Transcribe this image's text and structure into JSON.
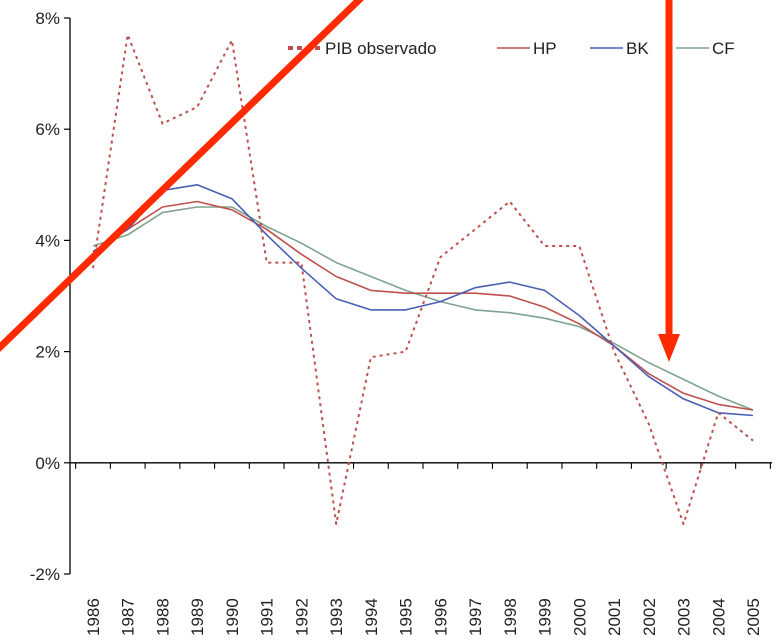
{
  "chart_data": {
    "type": "line",
    "categories": [
      "1986",
      "1987",
      "1988",
      "1989",
      "1990",
      "1991",
      "1992",
      "1993",
      "1994",
      "1995",
      "1996",
      "1997",
      "1998",
      "1999",
      "2000",
      "2001",
      "2002",
      "2003",
      "2004",
      "2005"
    ],
    "ylim": [
      -2,
      8
    ],
    "yticks": [
      -2,
      0,
      2,
      4,
      6,
      8
    ],
    "ytick_labels": [
      "-2%",
      "0%",
      "2%",
      "4%",
      "6%",
      "8%"
    ],
    "legend_position": "top-right",
    "series": [
      {
        "name": "PIB observado",
        "color": "#c0504d",
        "style": "dotted",
        "values": [
          3.5,
          7.7,
          6.1,
          6.4,
          7.6,
          3.6,
          3.6,
          -1.1,
          1.9,
          2.0,
          3.7,
          4.2,
          4.7,
          3.9,
          3.9,
          2.0,
          0.7,
          -1.1,
          0.9,
          0.4
        ]
      },
      {
        "name": "HP",
        "color": "#c0504d",
        "style": "solid",
        "values": [
          3.8,
          4.2,
          4.6,
          4.7,
          4.55,
          4.2,
          3.75,
          3.35,
          3.1,
          3.05,
          3.05,
          3.05,
          3.0,
          2.8,
          2.5,
          2.1,
          1.6,
          1.25,
          1.05,
          0.95
        ]
      },
      {
        "name": "BK",
        "color": "#4a5fb5",
        "style": "solid",
        "values": [
          3.8,
          4.2,
          4.9,
          5.0,
          4.75,
          4.1,
          3.5,
          2.95,
          2.75,
          2.75,
          2.9,
          3.15,
          3.25,
          3.1,
          2.65,
          2.1,
          1.55,
          1.15,
          0.9,
          0.85
        ]
      },
      {
        "name": "CF",
        "color": "#7fa38f",
        "style": "solid",
        "values": [
          3.9,
          4.1,
          4.5,
          4.6,
          4.6,
          4.25,
          3.95,
          3.6,
          3.35,
          3.1,
          2.9,
          2.75,
          2.7,
          2.6,
          2.45,
          2.15,
          1.8,
          1.5,
          1.2,
          0.95
        ]
      }
    ],
    "annotations": [
      {
        "type": "diagonal-line",
        "color": "#ff2a00"
      },
      {
        "type": "down-arrow",
        "color": "#ff2a00"
      }
    ]
  }
}
